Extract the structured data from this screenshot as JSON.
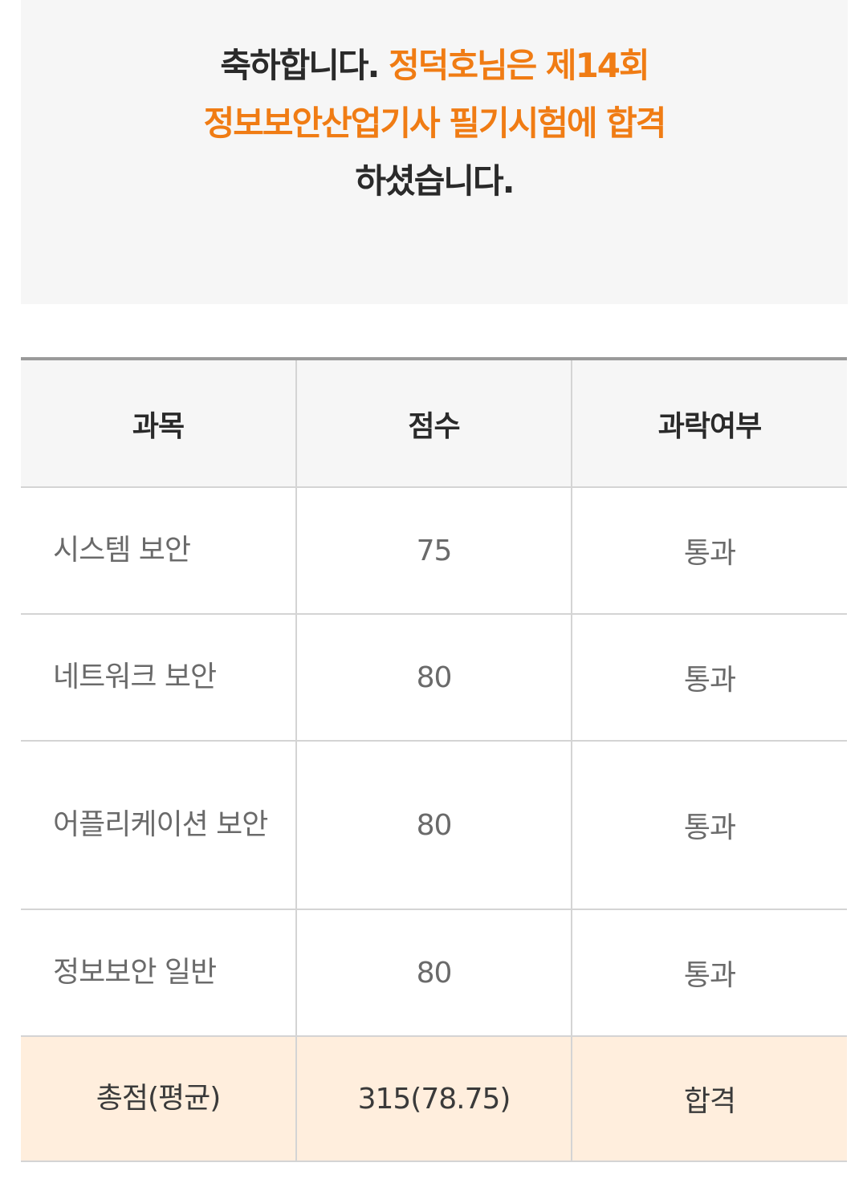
{
  "banner": {
    "line1_prefix": "축하합니다.",
    "line1_accent": "정덕호님은 제14회",
    "line2_accent": "정보보안산업기사 필기시험에 합격",
    "line3": "하셨습니다."
  },
  "table": {
    "headers": [
      "과목",
      "점수",
      "과락여부"
    ],
    "rows": [
      {
        "subject": "시스템 보안",
        "score": "75",
        "status": "통과"
      },
      {
        "subject": "네트워크 보안",
        "score": "80",
        "status": "통과"
      },
      {
        "subject": "어플리케이션 보안",
        "score": "80",
        "status": "통과"
      },
      {
        "subject": "정보보안 일반",
        "score": "80",
        "status": "통과"
      }
    ],
    "total": {
      "label": "총점(평균)",
      "score": "315(78.75)",
      "result": "합격"
    }
  },
  "colors": {
    "accent": "#f07c14",
    "total_row_bg": "#ffeedd",
    "header_bg": "#f6f6f6"
  }
}
